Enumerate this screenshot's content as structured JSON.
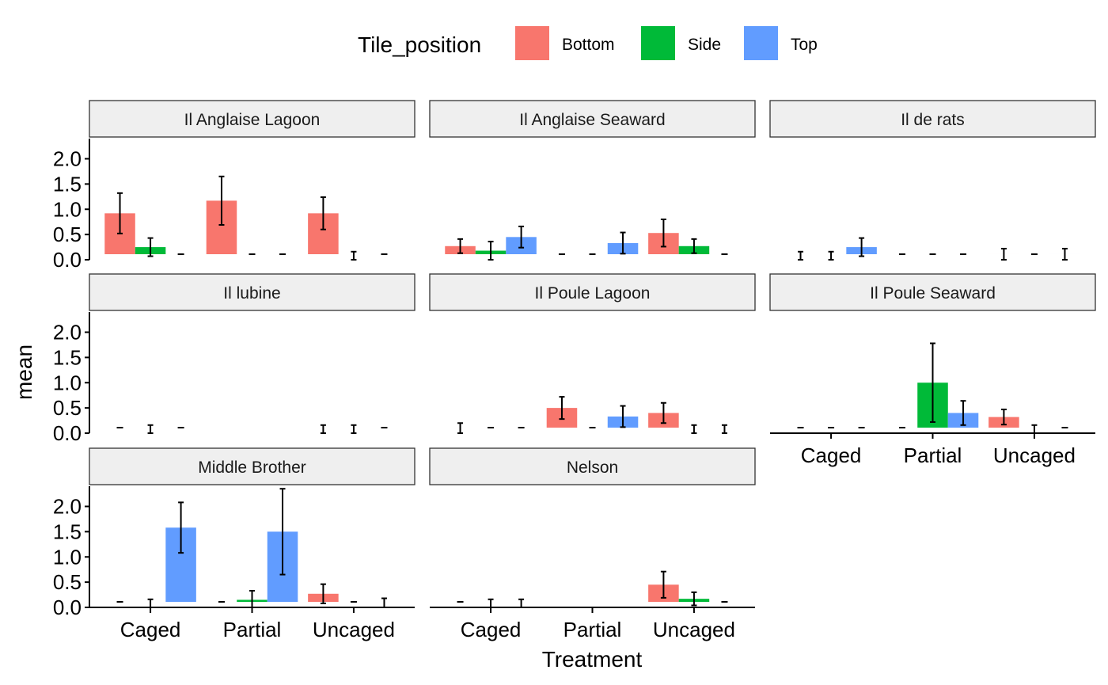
{
  "chart_data": {
    "type": "bar",
    "facet_variable": "",
    "xlabel": "Treatment",
    "ylabel": "mean",
    "ylim": [
      0,
      2.4
    ],
    "yticks": [
      0.0,
      0.5,
      1.0,
      1.5,
      2.0
    ],
    "ytick_labels": [
      "0.0",
      "0.5",
      "1.0",
      "1.5",
      "2.0"
    ],
    "categories": [
      "Caged",
      "Partial",
      "Uncaged"
    ],
    "legend": {
      "title": "Tile_position",
      "position": "top",
      "entries": [
        {
          "name": "Bottom",
          "color": "#F8766D"
        },
        {
          "name": "Side",
          "color": "#00BA38"
        },
        {
          "name": "Top",
          "color": "#619CFF"
        }
      ]
    },
    "panels": [
      {
        "title": "Il Anglaise Lagoon",
        "series": [
          {
            "name": "Bottom",
            "values": [
              0.92,
              1.17,
              0.92
            ],
            "errors": [
              0.4,
              0.48,
              0.32
            ]
          },
          {
            "name": "Side",
            "values": [
              0.25,
              0,
              0.08
            ],
            "errors": [
              0.18,
              0,
              0.08
            ]
          },
          {
            "name": "Top",
            "values": [
              0,
              0,
              0
            ],
            "errors": [
              0,
              0,
              0
            ]
          }
        ]
      },
      {
        "title": "Il Anglaise Seaward",
        "series": [
          {
            "name": "Bottom",
            "values": [
              0.27,
              0,
              0.53
            ],
            "errors": [
              0.14,
              0,
              0.27
            ]
          },
          {
            "name": "Side",
            "values": [
              0.18,
              0,
              0.27
            ],
            "errors": [
              0.18,
              0,
              0.14
            ]
          },
          {
            "name": "Top",
            "values": [
              0.45,
              0.33,
              0
            ],
            "errors": [
              0.21,
              0.21,
              0
            ]
          }
        ]
      },
      {
        "title": "Il de rats",
        "series": [
          {
            "name": "Bottom",
            "values": [
              0.08,
              0,
              0.11
            ],
            "errors": [
              0.08,
              0,
              0.11
            ]
          },
          {
            "name": "Side",
            "values": [
              0.08,
              0,
              0
            ],
            "errors": [
              0.08,
              0,
              0
            ]
          },
          {
            "name": "Top",
            "values": [
              0.25,
              0,
              0.11
            ],
            "errors": [
              0.18,
              0,
              0.11
            ]
          }
        ]
      },
      {
        "title": "Il lubine",
        "series": [
          {
            "name": "Bottom",
            "values": [
              0,
              null,
              0.08
            ],
            "errors": [
              0,
              0,
              0.08
            ]
          },
          {
            "name": "Side",
            "values": [
              0.08,
              null,
              0.08
            ],
            "errors": [
              0.08,
              0,
              0.08
            ]
          },
          {
            "name": "Top",
            "values": [
              0,
              null,
              0
            ],
            "errors": [
              0,
              0,
              0
            ]
          }
        ]
      },
      {
        "title": "Il Poule Lagoon",
        "series": [
          {
            "name": "Bottom",
            "values": [
              0.1,
              0.5,
              0.4
            ],
            "errors": [
              0.1,
              0.22,
              0.2
            ]
          },
          {
            "name": "Side",
            "values": [
              0,
              0,
              0.08
            ],
            "errors": [
              0,
              0,
              0.08
            ]
          },
          {
            "name": "Top",
            "values": [
              0,
              0.33,
              0.08
            ],
            "errors": [
              0,
              0.21,
              0.08
            ]
          }
        ]
      },
      {
        "title": "Il Poule Seaward",
        "series": [
          {
            "name": "Bottom",
            "values": [
              0,
              0,
              0.32
            ],
            "errors": [
              0,
              0,
              0.15
            ]
          },
          {
            "name": "Side",
            "values": [
              0,
              1.0,
              0.08
            ],
            "errors": [
              0,
              0.78,
              0.08
            ]
          },
          {
            "name": "Top",
            "values": [
              0,
              0.4,
              0
            ],
            "errors": [
              0,
              0.24,
              0
            ]
          }
        ]
      },
      {
        "title": "Middle Brother",
        "series": [
          {
            "name": "Bottom",
            "values": [
              0,
              0,
              0.27
            ],
            "errors": [
              0,
              0,
              0.19
            ]
          },
          {
            "name": "Side",
            "values": [
              0.08,
              0.15,
              0
            ],
            "errors": [
              0.08,
              0.18,
              0
            ]
          },
          {
            "name": "Top",
            "values": [
              1.58,
              1.5,
              0.09
            ],
            "errors": [
              0.5,
              0.85,
              0.09
            ]
          }
        ]
      },
      {
        "title": "Nelson",
        "series": [
          {
            "name": "Bottom",
            "values": [
              0,
              null,
              0.45
            ],
            "errors": [
              0,
              0,
              0.26
            ]
          },
          {
            "name": "Side",
            "values": [
              0.08,
              null,
              0.17
            ],
            "errors": [
              0.08,
              0,
              0.13
            ]
          },
          {
            "name": "Top",
            "values": [
              0.08,
              null,
              0
            ],
            "errors": [
              0.08,
              0,
              0
            ]
          }
        ]
      }
    ]
  }
}
